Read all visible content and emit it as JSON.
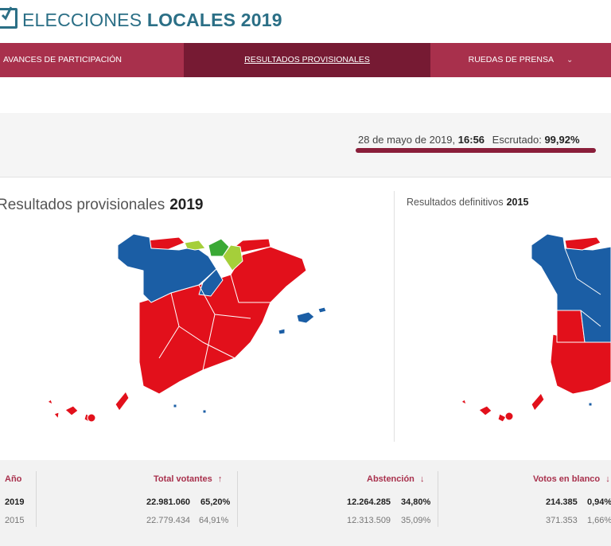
{
  "header": {
    "title_light": "ELECCIONES",
    "title_bold": "LOCALES 2019"
  },
  "nav": {
    "items": [
      {
        "label": "AVANCES DE PARTICIPACIÓN"
      },
      {
        "label": "RESULTADOS PROVISIONALES"
      },
      {
        "label": "RUEDAS DE PRENSA"
      }
    ]
  },
  "status": {
    "date": "28 de mayo de 2019,",
    "time": "16:56",
    "scrutiny_label": "Escrutado:",
    "scrutiny_value": "99,92%",
    "scrutiny_fraction": 0.9992
  },
  "maps": {
    "left": {
      "label": "Resultados provisionales",
      "year": "2019"
    },
    "right": {
      "label": "Resultados definitivos",
      "year": "2015"
    }
  },
  "colors": {
    "psoe_red": "#e2101b",
    "pp_blue": "#1b5ea5",
    "pnv_green": "#3aa935",
    "navarra_lime": "#a5cf3a",
    "brand": "#a8304c",
    "brand_dark": "#761a33",
    "title_teal": "#2b6f86"
  },
  "table": {
    "headers": {
      "year": "Año",
      "total": "Total votantes",
      "abstention": "Abstención",
      "blank": "Votos en blanco"
    },
    "header_arrows": {
      "total": "↑",
      "abstention": "↓",
      "blank": "↓"
    },
    "rows": [
      {
        "year": "2019",
        "total": "22.981.060",
        "total_pct": "65,20%",
        "abstention": "12.264.285",
        "abstention_pct": "34,80%",
        "blank": "214.385",
        "blank_pct": "0,94%"
      },
      {
        "year": "2015",
        "total": "22.779.434",
        "total_pct": "64,91%",
        "abstention": "12.313.509",
        "abstention_pct": "35,09%",
        "blank": "371.353",
        "blank_pct": "1,66%"
      }
    ]
  }
}
